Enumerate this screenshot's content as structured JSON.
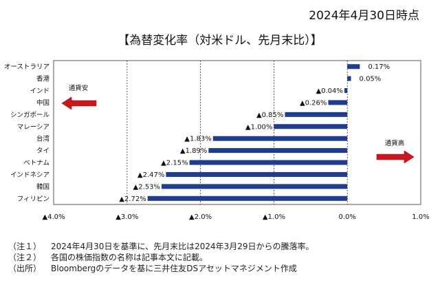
{
  "header": {
    "date": "2024年4月30日時点",
    "title": "【為替変化率（対米ドル、先月末比）】"
  },
  "annotations": {
    "left_arrow_label": "通貨安",
    "right_arrow_label": "通貨高",
    "arrow_color": "#c8171d"
  },
  "notes": [
    {
      "label": "（注１）",
      "text": "2024年4月30日を基準に、先月末比は2024年3月29日からの騰落率。"
    },
    {
      "label": "（注２）",
      "text": "各国の株価指数の名称は記事本文に記載。"
    },
    {
      "label": "（出所）",
      "text": "Bloombergのデータを基に三井住友DSアセットマネジメント作成"
    }
  ],
  "chart_data": {
    "type": "bar",
    "orientation": "horizontal",
    "bar_color": "#1f3d8c",
    "categories": [
      "オーストラリア",
      "香港",
      "インド",
      "中国",
      "シンガポール",
      "マレーシア",
      "台湾",
      "タイ",
      "ベトナム",
      "インドネシア",
      "韓国",
      "フィリピン"
    ],
    "values": [
      0.17,
      0.05,
      -0.04,
      -0.26,
      -0.85,
      -1.0,
      -1.83,
      -1.89,
      -2.15,
      -2.47,
      -2.53,
      -2.72
    ],
    "value_labels": [
      "0.17%",
      "0.05%",
      "▲0.04%",
      "▲0.26%",
      "▲0.85%",
      "▲1.00%",
      "▲1.83%",
      "▲1.89%",
      "▲2.15%",
      "▲2.47%",
      "▲2.53%",
      "▲2.72%"
    ],
    "xlim": [
      -4.0,
      1.0
    ],
    "xticks": [
      -4.0,
      -3.0,
      -2.0,
      -1.0,
      0.0,
      1.0
    ],
    "xtick_labels": [
      "▲4.0%",
      "▲3.0%",
      "▲2.0%",
      "▲1.0%",
      "0.0%",
      "1.0%"
    ],
    "gridlines": "dashed-vertical",
    "unit": "%"
  }
}
